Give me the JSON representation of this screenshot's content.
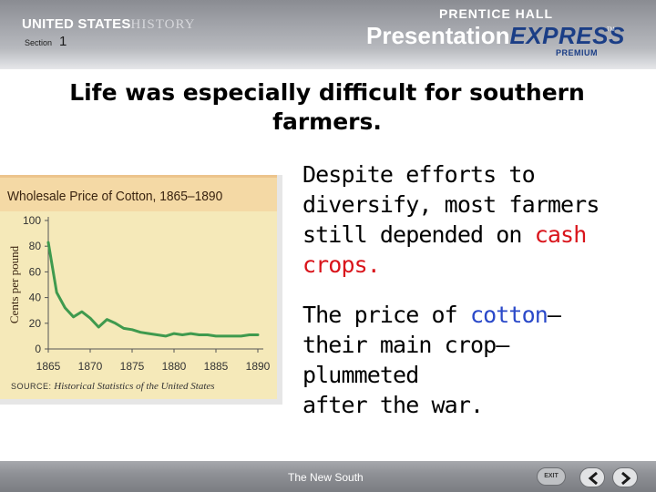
{
  "header": {
    "brand_us": "UNITED STATES",
    "brand_history": "HISTORY",
    "section_label": "Section",
    "section_number": "1",
    "publisher": "PRENTICE HALL",
    "product_presentation": "Presentation",
    "product_express": "EXPRESS",
    "trademark": "TM",
    "product_tier": "PREMIUM"
  },
  "slide": {
    "title": "Life was especially difficult for southern farmers.",
    "paragraph1": {
      "line1": "Despite efforts to",
      "line2": "diversify, most farmers",
      "line3_prefix": "still depended on ",
      "line3_highlight": "cash",
      "line4_highlight": "crops",
      "line4_suffix": "."
    },
    "paragraph2": {
      "line1_prefix": "The price of ",
      "line1_highlight": "cotton",
      "line1_suffix": "—",
      "line2": "their main crop—",
      "line3": "plummeted",
      "line4": "after the war."
    }
  },
  "chart_data": {
    "type": "line",
    "title": "Wholesale Price of Cotton, 1865–1890",
    "ylabel": "Cents per pound",
    "xlabel": "",
    "source_key": "SOURCE:",
    "source_value": "Historical Statistics of the United States",
    "x": [
      1865,
      1866,
      1867,
      1868,
      1869,
      1870,
      1871,
      1872,
      1873,
      1874,
      1875,
      1876,
      1877,
      1878,
      1879,
      1880,
      1881,
      1882,
      1883,
      1884,
      1885,
      1886,
      1887,
      1888,
      1889,
      1890
    ],
    "series": [
      {
        "values": [
          83,
          44,
          32,
          25,
          29,
          24,
          17,
          23,
          20,
          16,
          15,
          13,
          12,
          11,
          10,
          12,
          11,
          12,
          11,
          11,
          10,
          10,
          10,
          10,
          11,
          11
        ]
      }
    ],
    "xticks": [
      1865,
      1870,
      1875,
      1880,
      1885,
      1890
    ],
    "yticks": [
      0,
      20,
      40,
      60,
      80,
      100
    ],
    "ylim": [
      0,
      100
    ],
    "grid": false,
    "line_color": "#3f9a4e"
  },
  "footer": {
    "label": "The New South",
    "exit_label": "EXIT",
    "prev_icon": "chevron-left-icon",
    "next_icon": "chevron-right-icon"
  }
}
